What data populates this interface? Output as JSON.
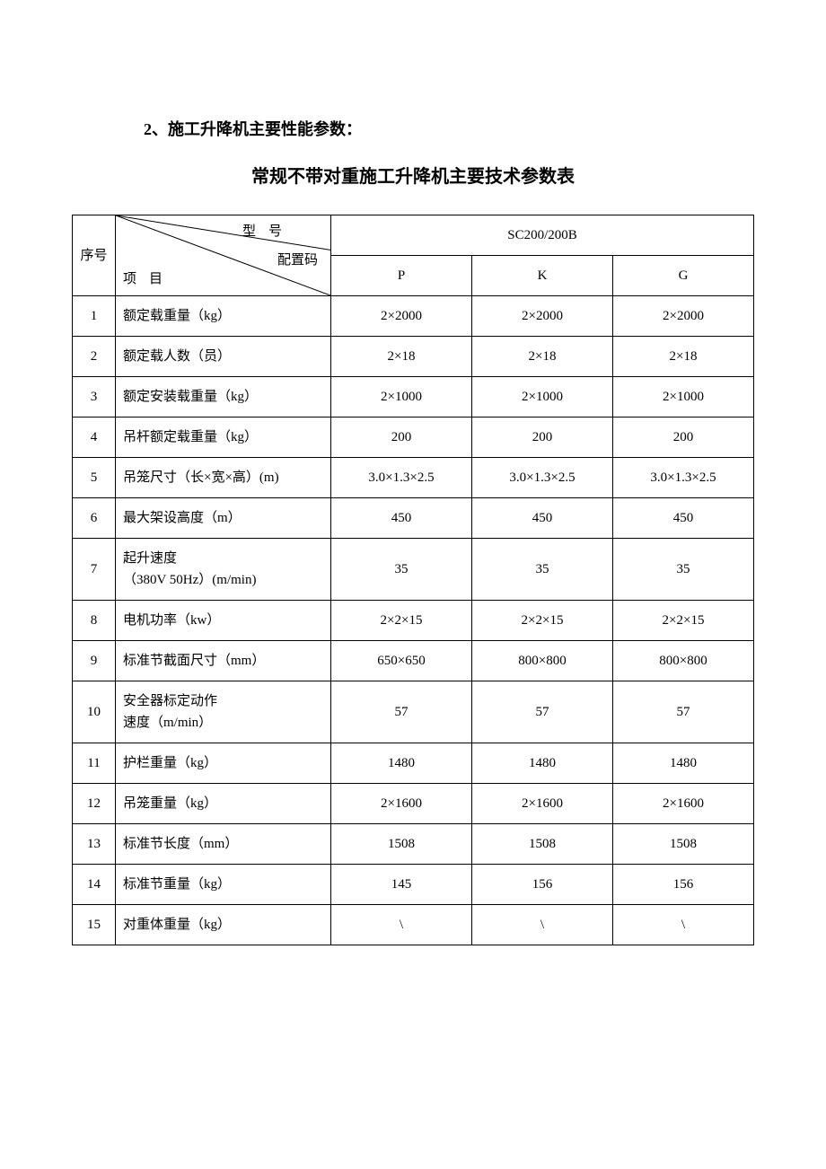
{
  "section_heading": "2、施工升降机主要性能参数：",
  "table_title": "常规不带对重施工升降机主要技术参数表",
  "header": {
    "index_label": "序号",
    "diag_top": "型号",
    "diag_mid": "配置码",
    "diag_bot": "项目",
    "model": "SC200/200B",
    "cols": [
      "P",
      "K",
      "G"
    ]
  },
  "rows": [
    {
      "n": "1",
      "item": "额定载重量（kg）",
      "p": "2×2000",
      "k": "2×2000",
      "g": "2×2000"
    },
    {
      "n": "2",
      "item": "额定载人数（员）",
      "p": "2×18",
      "k": "2×18",
      "g": "2×18"
    },
    {
      "n": "3",
      "item": "额定安装载重量（kg）",
      "p": "2×1000",
      "k": "2×1000",
      "g": "2×1000"
    },
    {
      "n": "4",
      "item": "吊杆额定载重量（kg）",
      "p": "200",
      "k": "200",
      "g": "200"
    },
    {
      "n": "5",
      "item": "吊笼尺寸（长×宽×高）(m)",
      "p": "3.0×1.3×2.5",
      "k": "3.0×1.3×2.5",
      "g": "3.0×1.3×2.5"
    },
    {
      "n": "6",
      "item": "最大架设高度（m）",
      "p": "450",
      "k": "450",
      "g": "450"
    },
    {
      "n": "7",
      "item": "起升速度\n（380V 50Hz）(m/min)",
      "p": "35",
      "k": "35",
      "g": "35"
    },
    {
      "n": "8",
      "item": "电机功率（kw）",
      "p": "2×2×15",
      "k": "2×2×15",
      "g": "2×2×15"
    },
    {
      "n": "9",
      "item": "标准节截面尺寸（mm）",
      "p": "650×650",
      "k": "800×800",
      "g": "800×800"
    },
    {
      "n": "10",
      "item": "安全器标定动作\n速度（m/min）",
      "p": "57",
      "k": "57",
      "g": "57"
    },
    {
      "n": "11",
      "item": "护栏重量（kg）",
      "p": "1480",
      "k": "1480",
      "g": "1480"
    },
    {
      "n": "12",
      "item": "吊笼重量（kg）",
      "p": "2×1600",
      "k": "2×1600",
      "g": "2×1600"
    },
    {
      "n": "13",
      "item": "标准节长度（mm）",
      "p": "1508",
      "k": "1508",
      "g": "1508"
    },
    {
      "n": "14",
      "item": "标准节重量（kg）",
      "p": "145",
      "k": "156",
      "g": "156"
    },
    {
      "n": "15",
      "item": "对重体重量（kg）",
      "p": "\\",
      "k": "\\",
      "g": "\\"
    }
  ],
  "style": {
    "border_color": "#000000",
    "text_color": "#000000",
    "background": "#ffffff",
    "font_family": "SimSun",
    "heading_fontsize": 18,
    "title_fontsize": 20,
    "body_fontsize": 15
  }
}
